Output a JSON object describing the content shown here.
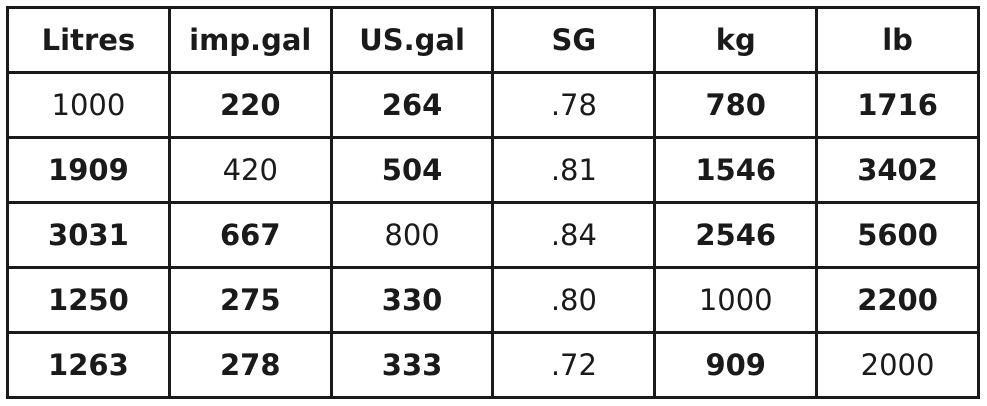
{
  "table": {
    "headers": [
      "Litres",
      "imp.gal",
      "US.gal",
      "SG",
      "kg",
      "lb"
    ],
    "rows": [
      [
        "1000",
        "220",
        "264",
        ".78",
        "780",
        "1716"
      ],
      [
        "1909",
        "420",
        "504",
        ".81",
        "1546",
        "3402"
      ],
      [
        "3031",
        "667",
        "800",
        ".84",
        "2546",
        "5600"
      ],
      [
        "1250",
        "275",
        "330",
        ".80",
        "1000",
        "2200"
      ],
      [
        "1263",
        "278",
        "333",
        ".72",
        "909",
        "2000"
      ]
    ]
  }
}
